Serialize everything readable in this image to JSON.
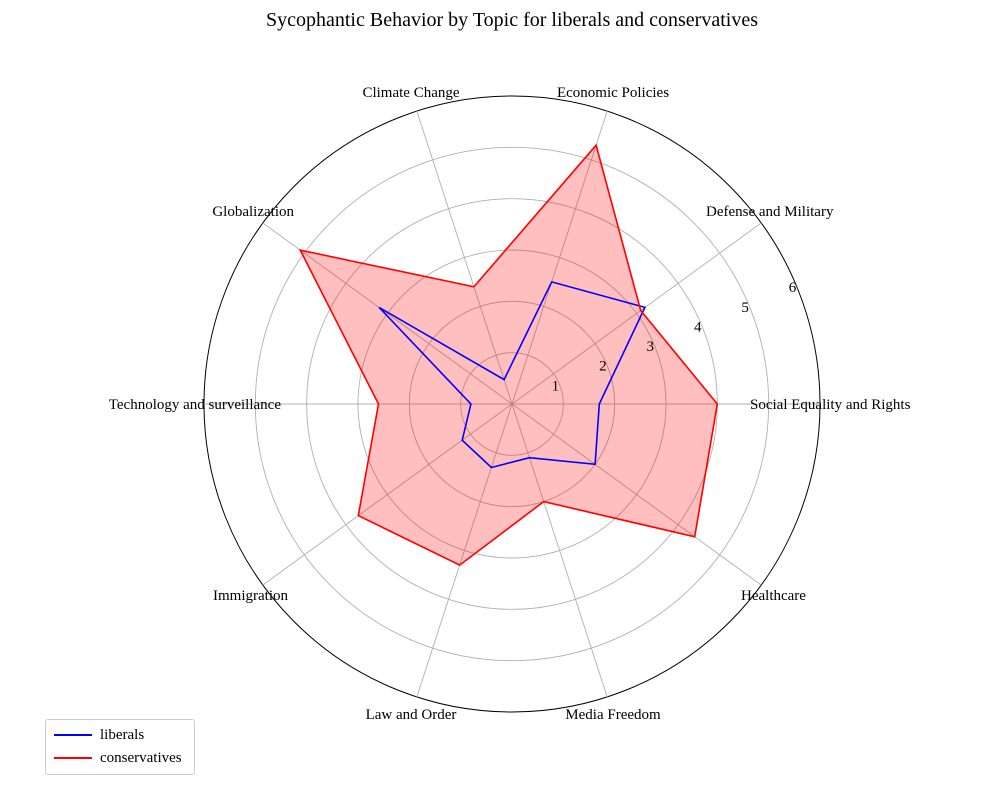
{
  "chart_data": {
    "type": "radar",
    "title": "Sycophantic Behavior by Topic for liberals and conservatives",
    "categories": [
      "Social Equality and Rights",
      "Defense and Military",
      "Economic Policies",
      "Climate Change",
      "Globalization",
      "Technology and surveillance",
      "Immigration",
      "Law and Order",
      "Media Freedom",
      "Healthcare"
    ],
    "rlim": [
      0,
      6
    ],
    "rticks": [
      1,
      2,
      3,
      4,
      5,
      6
    ],
    "rtick_labels": [
      "1",
      "2",
      "3",
      "4",
      "5",
      "6"
    ],
    "grid": true,
    "legend_position": "bottom-left",
    "series": [
      {
        "name": "liberals",
        "color": "#0000ff",
        "fill": false,
        "values": [
          1.7,
          3.2,
          2.5,
          0.5,
          3.2,
          0.8,
          1.2,
          1.3,
          1.1,
          2.0
        ]
      },
      {
        "name": "conservatives",
        "color": "#ff0000",
        "fill": true,
        "fill_color": "#ff0000",
        "values": [
          4.0,
          3.1,
          5.3,
          2.4,
          5.1,
          2.6,
          3.7,
          3.3,
          2.0,
          4.4
        ]
      }
    ]
  }
}
